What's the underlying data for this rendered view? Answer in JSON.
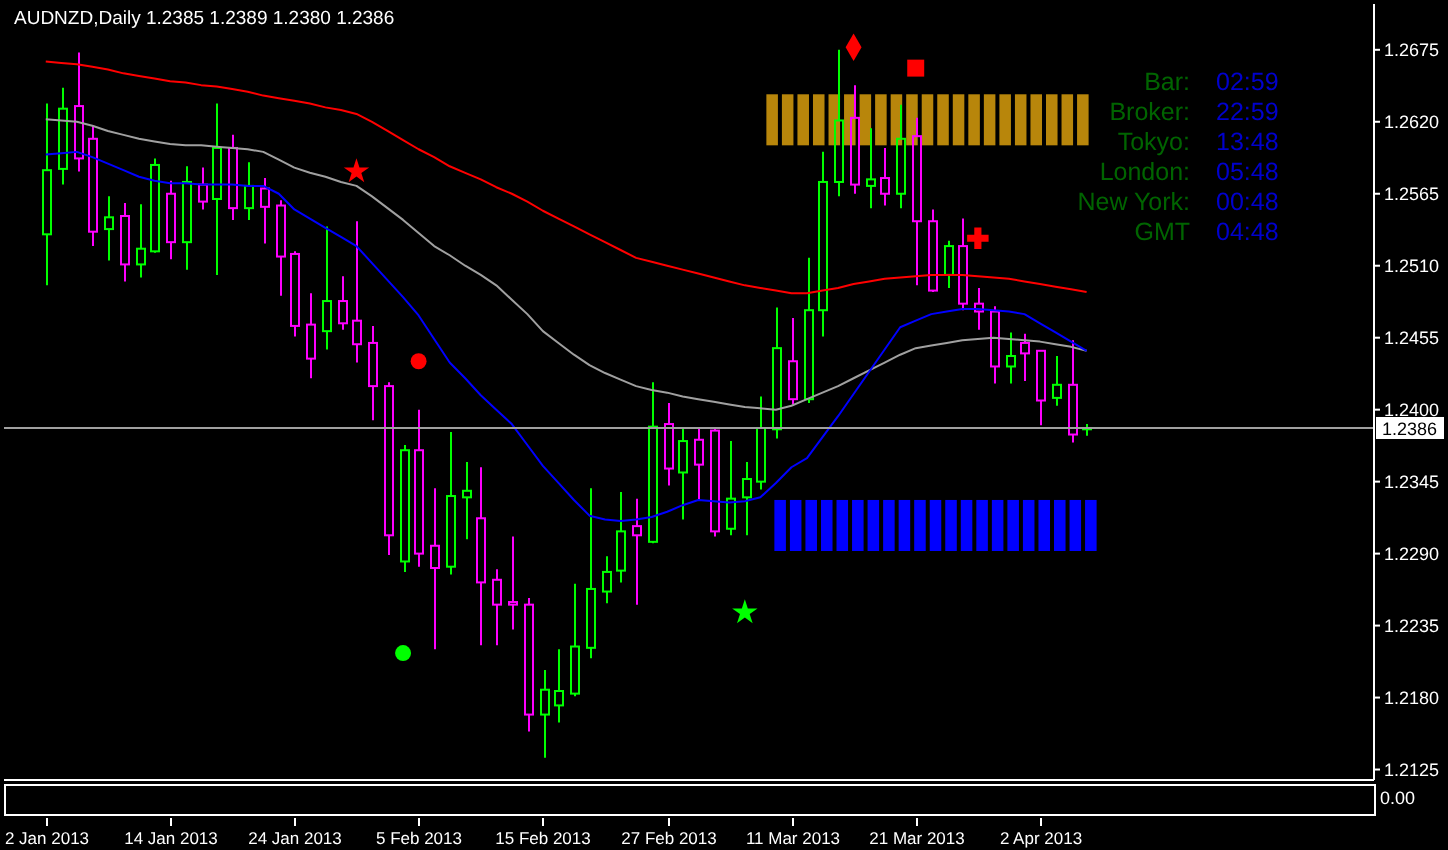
{
  "chart_data": [
    {
      "type": "candlestick",
      "title": "AUDNZD,Daily 1.2385 1.2389 1.2380 1.2386",
      "categories": [
        "2 Jan 2013",
        null,
        null,
        null,
        null,
        null,
        null,
        null,
        "14 Jan 2013",
        null,
        null,
        null,
        null,
        null,
        null,
        null,
        "24 Jan 2013",
        null,
        null,
        null,
        null,
        null,
        null,
        null,
        "5 Feb 2013",
        null,
        null,
        null,
        null,
        null,
        null,
        null,
        "15 Feb 2013",
        null,
        null,
        null,
        null,
        null,
        null,
        null,
        "27 Feb 2013",
        null,
        null,
        null,
        null,
        null,
        null,
        null,
        "11 Mar 2013",
        null,
        null,
        null,
        null,
        null,
        null,
        null,
        "21 Mar 2013",
        null,
        null,
        null,
        null,
        null,
        null,
        null,
        "2 Apr 2013",
        null,
        null,
        null,
        null,
        null,
        null,
        null,
        null,
        null,
        null,
        null,
        null,
        null,
        null,
        null,
        null,
        null,
        null,
        null,
        null,
        null
      ],
      "ohlc": [
        [
          1.2534,
          1.2634,
          1.2495,
          1.2583
        ],
        [
          1.2584,
          1.2646,
          1.2572,
          1.263
        ],
        [
          1.2632,
          1.2673,
          1.2582,
          1.2592
        ],
        [
          1.2607,
          1.2617,
          1.2525,
          1.2536
        ],
        [
          1.2538,
          1.2563,
          1.2514,
          1.2547
        ],
        [
          1.2548,
          1.2558,
          1.2498,
          1.2511
        ],
        [
          1.2511,
          1.2557,
          1.2501,
          1.2523
        ],
        [
          1.2521,
          1.2592,
          1.252,
          1.2587
        ],
        [
          1.2565,
          1.2575,
          1.2515,
          1.2528
        ],
        [
          1.2528,
          1.2586,
          1.2507,
          1.2574
        ],
        [
          1.2572,
          1.2585,
          1.2553,
          1.2559
        ],
        [
          1.2561,
          1.2634,
          1.2503,
          1.26
        ],
        [
          1.26,
          1.261,
          1.2545,
          1.2554
        ],
        [
          1.2554,
          1.2589,
          1.2545,
          1.2571
        ],
        [
          1.2569,
          1.2577,
          1.2527,
          1.2555
        ],
        [
          1.2556,
          1.256,
          1.2487,
          1.2517
        ],
        [
          1.2519,
          1.2521,
          1.2456,
          1.2464
        ],
        [
          1.2465,
          1.2489,
          1.2424,
          1.2439
        ],
        [
          1.246,
          1.254,
          1.2446,
          1.2483
        ],
        [
          1.2483,
          1.2502,
          1.2461,
          1.2466
        ],
        [
          1.2468,
          1.2544,
          1.2436,
          1.245
        ],
        [
          1.2451,
          1.2464,
          1.2392,
          1.2418
        ],
        [
          1.2418,
          1.2421,
          1.2289,
          1.2304
        ],
        [
          1.2284,
          1.2373,
          1.2276,
          1.2369
        ],
        [
          1.2369,
          1.24,
          1.228,
          1.229
        ],
        [
          1.2296,
          1.234,
          1.2217,
          1.2279
        ],
        [
          1.228,
          1.2383,
          1.2274,
          1.2334
        ],
        [
          1.2333,
          1.236,
          1.2301,
          1.2338
        ],
        [
          1.2317,
          1.2356,
          1.222,
          1.2268
        ],
        [
          1.227,
          1.2278,
          1.222,
          1.2251
        ],
        [
          1.2253,
          1.2303,
          1.2232,
          1.2251
        ],
        [
          1.2251,
          1.2256,
          1.2154,
          1.2167
        ],
        [
          1.2167,
          1.2201,
          1.2134,
          1.2186
        ],
        [
          1.2174,
          1.2217,
          1.2161,
          1.2185
        ],
        [
          1.2183,
          1.2267,
          1.2181,
          1.2219
        ],
        [
          1.2218,
          1.234,
          1.221,
          1.2263
        ],
        [
          1.2261,
          1.2288,
          1.2252,
          1.2276
        ],
        [
          1.2277,
          1.2337,
          1.2268,
          1.2307
        ],
        [
          1.2311,
          1.2332,
          1.2251,
          1.2304
        ],
        [
          1.2299,
          1.2421,
          1.2298,
          1.2387
        ],
        [
          1.2389,
          1.2405,
          1.2342,
          1.2355
        ],
        [
          1.2352,
          1.2386,
          1.2316,
          1.2376
        ],
        [
          1.2377,
          1.2386,
          1.2331,
          1.2358
        ],
        [
          1.2384,
          1.2386,
          1.2303,
          1.2307
        ],
        [
          1.2309,
          1.2376,
          1.2304,
          1.2332
        ],
        [
          1.2333,
          1.236,
          1.2304,
          1.2347
        ],
        [
          1.2345,
          1.241,
          1.2339,
          1.2386
        ],
        [
          1.2385,
          1.2478,
          1.2378,
          1.2447
        ],
        [
          1.2437,
          1.247,
          1.2404,
          1.2408
        ],
        [
          1.2408,
          1.2516,
          1.2405,
          1.2476
        ],
        [
          1.2476,
          1.2597,
          1.2456,
          1.2574
        ],
        [
          1.2574,
          1.2675,
          1.2563,
          1.2621
        ],
        [
          1.2623,
          1.2648,
          1.2565,
          1.2572
        ],
        [
          1.2571,
          1.2615,
          1.2554,
          1.2576
        ],
        [
          1.2577,
          1.26,
          1.2556,
          1.2565
        ],
        [
          1.2565,
          1.2633,
          1.2554,
          1.2607
        ],
        [
          1.2609,
          1.2623,
          1.2495,
          1.2544
        ],
        [
          1.2544,
          1.2553,
          1.249,
          1.2491
        ],
        [
          1.2503,
          1.2529,
          1.2493,
          1.2525
        ],
        [
          1.2525,
          1.2546,
          1.2476,
          1.2481
        ],
        [
          1.2481,
          1.2493,
          1.2461,
          1.2475
        ],
        [
          1.2475,
          1.2479,
          1.242,
          1.2433
        ],
        [
          1.2433,
          1.2459,
          1.242,
          1.2441
        ],
        [
          1.2451,
          1.2458,
          1.2422,
          1.2443
        ],
        [
          1.2445,
          1.2445,
          1.2388,
          1.2407
        ],
        [
          1.2409,
          1.2441,
          1.2403,
          1.2419
        ],
        [
          1.2419,
          1.2453,
          1.2375,
          1.2381
        ],
        [
          1.2385,
          1.2389,
          1.238,
          1.2386
        ],
        null,
        null,
        null,
        null,
        null,
        null,
        null,
        null,
        null,
        null,
        null,
        null,
        null,
        null,
        null,
        null,
        null,
        null
      ],
      "colors": [
        "#00ff00",
        "#00ff00",
        "#ff00ff",
        "#ff00ff",
        "#00ff00",
        "#ff00ff",
        "#00ff00",
        "#00ff00",
        "#ff00ff",
        "#00ff00",
        "#ff00ff",
        "#00ff00",
        "#ff00ff",
        "#00ff00",
        "#ff00ff",
        "#ff00ff",
        "#ff00ff",
        "#ff00ff",
        "#00ff00",
        "#ff00ff",
        "#ff00ff",
        "#ff00ff",
        "#ff00ff",
        "#00ff00",
        "#ff00ff",
        "#ff00ff",
        "#00ff00",
        "#00ff00",
        "#ff00ff",
        "#ff00ff",
        "#ff00ff",
        "#ff00ff",
        "#00ff00",
        "#00ff00",
        "#00ff00",
        "#00ff00",
        "#00ff00",
        "#00ff00",
        "#ff00ff",
        "#00ff00",
        "#ff00ff",
        "#00ff00",
        "#ff00ff",
        "#ff00ff",
        "#00ff00",
        "#00ff00",
        "#00ff00",
        "#00ff00",
        "#ff00ff",
        "#00ff00",
        "#00ff00",
        "#00ff00",
        "#ff00ff",
        "#00ff00",
        "#ff00ff",
        "#00ff00",
        "#ff00ff",
        "#ff00ff",
        "#00ff00",
        "#ff00ff",
        "#ff00ff",
        "#ff00ff",
        "#00ff00",
        "#ff00ff",
        "#ff00ff",
        "#00ff00",
        "#ff00ff",
        "#00ff00",
        null,
        null,
        null,
        null,
        null,
        null,
        null,
        null,
        null,
        null,
        null,
        null,
        null,
        null,
        null,
        null,
        null,
        null
      ],
      "series": [
        {
          "type": "bar",
          "color": "#b8860b",
          "base": [
            null,
            null,
            null,
            null,
            null,
            null,
            null,
            null,
            null,
            null,
            null,
            null,
            null,
            null,
            null,
            null,
            null,
            null,
            null,
            null,
            null,
            null,
            null,
            null,
            null,
            null,
            null,
            null,
            null,
            null,
            null,
            null,
            null,
            null,
            null,
            null,
            null,
            null,
            null,
            null,
            null,
            null,
            null,
            null,
            null,
            null,
            null,
            1.2602,
            1.2602,
            1.2602,
            1.2602,
            1.2602,
            1.2602,
            1.2602,
            1.2602,
            1.2602,
            1.2602,
            1.2602,
            1.2602,
            1.2602,
            1.2602,
            1.2602,
            1.2602,
            1.2602,
            1.2602,
            1.2602,
            1.2602,
            1.2602,
            null,
            null,
            null,
            null,
            null,
            null,
            null,
            null,
            null,
            null,
            null,
            null,
            null,
            null,
            null,
            null,
            null,
            null
          ],
          "values": [
            null,
            null,
            null,
            null,
            null,
            null,
            null,
            null,
            null,
            null,
            null,
            null,
            null,
            null,
            null,
            null,
            null,
            null,
            null,
            null,
            null,
            null,
            null,
            null,
            null,
            null,
            null,
            null,
            null,
            null,
            null,
            null,
            null,
            null,
            null,
            null,
            null,
            null,
            null,
            null,
            null,
            null,
            null,
            null,
            null,
            null,
            null,
            0.0039,
            0.0039,
            0.0039,
            0.0039,
            0.0039,
            0.0039,
            0.0039,
            0.0039,
            0.0039,
            0.0039,
            0.0039,
            0.0039,
            0.0039,
            0.0039,
            0.0039,
            0.0039,
            0.0039,
            0.0039,
            0.0039,
            0.0039,
            0.0039,
            null,
            null,
            null,
            null,
            null,
            null,
            null,
            null,
            null,
            null,
            null,
            null,
            null,
            null,
            null,
            null,
            null,
            null
          ]
        },
        {
          "type": "bar",
          "color": "#0000ff",
          "base": [
            null,
            null,
            null,
            null,
            null,
            null,
            null,
            null,
            null,
            null,
            null,
            null,
            null,
            null,
            null,
            null,
            null,
            null,
            null,
            null,
            null,
            null,
            null,
            null,
            null,
            null,
            null,
            null,
            null,
            null,
            null,
            null,
            null,
            null,
            null,
            null,
            null,
            null,
            null,
            null,
            null,
            null,
            null,
            null,
            null,
            null,
            null,
            1.2292,
            1.2292,
            1.2292,
            1.2292,
            1.2292,
            1.2292,
            1.2292,
            1.2292,
            1.2292,
            1.2292,
            1.2292,
            1.2292,
            1.2292,
            1.2292,
            1.2292,
            1.2292,
            1.2292,
            1.2292,
            1.2292,
            1.2292,
            1.2292,
            null,
            null,
            null,
            null,
            null,
            null,
            null,
            null,
            null,
            null,
            null,
            null,
            null,
            null,
            null,
            null,
            null,
            null
          ],
          "values": [
            null,
            null,
            null,
            null,
            null,
            null,
            null,
            null,
            null,
            null,
            null,
            null,
            null,
            null,
            null,
            null,
            null,
            null,
            null,
            null,
            null,
            null,
            null,
            null,
            null,
            null,
            null,
            null,
            null,
            null,
            null,
            null,
            null,
            null,
            null,
            null,
            null,
            null,
            null,
            null,
            null,
            null,
            null,
            null,
            null,
            null,
            null,
            0.0039,
            0.0039,
            0.0039,
            0.0039,
            0.0039,
            0.0039,
            0.0039,
            0.0039,
            0.0039,
            0.0039,
            0.0039,
            0.0039,
            0.0039,
            0.0039,
            0.0039,
            0.0039,
            0.0039,
            0.0039,
            0.0039,
            0.0039,
            0.0039,
            null,
            null,
            null,
            null,
            null,
            null,
            null,
            null,
            null,
            null,
            null,
            null,
            null,
            null,
            null,
            null,
            null,
            null
          ]
        },
        {
          "type": "line",
          "color": "#ff0000",
          "values": [
            1.2666,
            1.2665,
            1.2664,
            1.2662,
            1.266,
            1.2657,
            1.2655,
            1.2653,
            1.2651,
            1.265,
            1.2648,
            1.2647,
            1.2645,
            1.2643,
            1.264,
            1.2638,
            1.2636,
            1.2634,
            1.2631,
            1.2629,
            1.2626,
            1.262,
            1.2613,
            1.2606,
            1.2599,
            1.2593,
            1.2586,
            1.2581,
            1.2576,
            1.257,
            1.2565,
            1.2559,
            1.2552,
            1.2546,
            1.254,
            1.2534,
            1.2528,
            1.2522,
            1.2516,
            1.2513,
            1.251,
            1.2507,
            1.2504,
            1.2501,
            1.2498,
            1.2495,
            1.2493,
            1.2491,
            1.2489,
            1.2489,
            1.2491,
            1.2493,
            1.2496,
            1.2498,
            1.25,
            1.2501,
            1.2502,
            1.2503,
            1.2503,
            1.2503,
            1.2502,
            1.2501,
            1.25,
            1.2498,
            1.2496,
            1.2494,
            1.2492,
            1.249,
            null,
            null,
            null,
            null,
            null,
            null,
            null,
            null,
            null,
            null,
            null,
            null,
            null,
            null,
            null,
            null,
            null,
            null
          ]
        },
        {
          "type": "line",
          "color": "#a0a0a0",
          "values": [
            1.2622,
            1.2621,
            1.262,
            1.2617,
            1.2613,
            1.261,
            1.2607,
            1.2605,
            1.2603,
            1.2602,
            1.2602,
            1.2601,
            1.26,
            1.2599,
            1.2597,
            1.2591,
            1.2585,
            1.2581,
            1.2578,
            1.2574,
            1.2571,
            1.2563,
            1.2554,
            1.2545,
            1.2535,
            1.2525,
            1.2518,
            1.251,
            1.2503,
            1.2495,
            1.2484,
            1.2473,
            1.246,
            1.2451,
            1.2442,
            1.2434,
            1.2428,
            1.2423,
            1.2418,
            1.2415,
            1.2413,
            1.241,
            1.2408,
            1.2406,
            1.2404,
            1.2402,
            1.2401,
            1.24,
            1.2403,
            1.2408,
            1.2413,
            1.2418,
            1.2424,
            1.243,
            1.2436,
            1.2442,
            1.2447,
            1.2449,
            1.2451,
            1.2453,
            1.2454,
            1.2455,
            1.2454,
            1.2453,
            1.2452,
            1.245,
            1.2448,
            1.2445,
            null,
            null,
            null,
            null,
            null,
            null,
            null,
            null,
            null,
            null,
            null,
            null,
            null,
            null,
            null,
            null,
            null,
            null
          ]
        },
        {
          "type": "line",
          "color": "#0000ff",
          "values": [
            1.2595,
            1.2596,
            1.2597,
            1.2593,
            1.2588,
            1.2583,
            1.2578,
            1.2575,
            1.2573,
            1.2573,
            1.2572,
            1.2572,
            1.2572,
            1.2571,
            1.2571,
            1.2565,
            1.2553,
            1.2546,
            1.2539,
            1.2532,
            1.2525,
            1.2512,
            1.2499,
            1.2486,
            1.2472,
            1.2454,
            1.2436,
            1.2424,
            1.2411,
            1.24,
            1.2389,
            1.2373,
            1.2357,
            1.2344,
            1.2331,
            1.2319,
            1.2316,
            1.2315,
            1.2316,
            1.2318,
            1.2322,
            1.2327,
            1.2331,
            1.233,
            1.2329,
            1.233,
            1.2333,
            1.2344,
            1.2356,
            1.2363,
            1.2379,
            1.2395,
            1.2412,
            1.2429,
            1.2446,
            1.2463,
            1.2468,
            1.2473,
            1.2475,
            1.2477,
            1.2477,
            1.2476,
            1.2475,
            1.2473,
            1.2466,
            1.2459,
            1.2452,
            1.2445,
            null,
            null,
            null,
            null,
            null,
            null,
            null,
            null,
            null,
            null,
            null,
            null,
            null,
            null,
            null,
            null,
            null,
            null
          ]
        },
        {
          "type": "scatter",
          "color": "#ff0000",
          "marker": "star",
          "values": [
            null,
            null,
            null,
            null,
            null,
            null,
            null,
            null,
            null,
            null,
            null,
            null,
            null,
            null,
            null,
            null,
            null,
            null,
            null,
            null,
            1.2582,
            null,
            null,
            null,
            null,
            null,
            null,
            null,
            null,
            null,
            null,
            null,
            null,
            null,
            null,
            null,
            null,
            null,
            null,
            null,
            null,
            null,
            null,
            null,
            null,
            null,
            null,
            null,
            null,
            null,
            null,
            null,
            null,
            null,
            null,
            null,
            null,
            null,
            null,
            null,
            null,
            null,
            null,
            null,
            null,
            null,
            null,
            null,
            null,
            null,
            null,
            null,
            null,
            null,
            null,
            null,
            null,
            null,
            null,
            null,
            null,
            null,
            null,
            null,
            null,
            null
          ]
        },
        {
          "type": "scatter",
          "color": "#ff0000",
          "marker": "circle",
          "values": [
            null,
            null,
            null,
            null,
            null,
            null,
            null,
            null,
            null,
            null,
            null,
            null,
            null,
            null,
            null,
            null,
            null,
            null,
            null,
            null,
            null,
            null,
            null,
            null,
            1.2437,
            null,
            null,
            null,
            null,
            null,
            null,
            null,
            null,
            null,
            null,
            null,
            null,
            null,
            null,
            null,
            null,
            null,
            null,
            null,
            null,
            null,
            null,
            null,
            null,
            null,
            null,
            null,
            null,
            null,
            null,
            null,
            null,
            null,
            null,
            null,
            null,
            null,
            null,
            null,
            null,
            null,
            null,
            null,
            null,
            null,
            null,
            null,
            null,
            null,
            null,
            null,
            null,
            null,
            null,
            null,
            null,
            null,
            null,
            null,
            null,
            null
          ]
        },
        {
          "type": "scatter",
          "color": "#00ff00",
          "marker": "circle",
          "values": [
            null,
            null,
            null,
            null,
            null,
            null,
            null,
            null,
            null,
            null,
            null,
            null,
            null,
            null,
            null,
            null,
            null,
            null,
            null,
            null,
            null,
            null,
            null,
            1.2214,
            null,
            null,
            null,
            null,
            null,
            null,
            null,
            null,
            null,
            null,
            null,
            null,
            null,
            null,
            null,
            null,
            null,
            null,
            null,
            null,
            null,
            null,
            null,
            null,
            null,
            null,
            null,
            null,
            null,
            null,
            null,
            null,
            null,
            null,
            null,
            null,
            null,
            null,
            null,
            null,
            null,
            null,
            null,
            null,
            null,
            null,
            null,
            null,
            null,
            null,
            null,
            null,
            null,
            null,
            null,
            null,
            null,
            null,
            null,
            null,
            null,
            null
          ]
        },
        {
          "type": "scatter",
          "color": "#00ff00",
          "marker": "star",
          "values": [
            null,
            null,
            null,
            null,
            null,
            null,
            null,
            null,
            null,
            null,
            null,
            null,
            null,
            null,
            null,
            null,
            null,
            null,
            null,
            null,
            null,
            null,
            null,
            null,
            null,
            null,
            null,
            null,
            null,
            null,
            null,
            null,
            null,
            null,
            null,
            null,
            null,
            null,
            null,
            null,
            null,
            null,
            null,
            null,
            null,
            1.2245,
            null,
            null,
            null,
            null,
            null,
            null,
            null,
            null,
            null,
            null,
            null,
            null,
            null,
            null,
            null,
            null,
            null,
            null,
            null,
            null,
            null,
            null,
            null,
            null,
            null,
            null,
            null,
            null,
            null,
            null,
            null,
            null,
            null,
            null,
            null,
            null,
            null,
            null,
            null,
            null
          ]
        },
        {
          "type": "scatter",
          "color": "#ff0000",
          "marker": "diamond",
          "values": [
            null,
            null,
            null,
            null,
            null,
            null,
            null,
            null,
            null,
            null,
            null,
            null,
            null,
            null,
            null,
            null,
            null,
            null,
            null,
            null,
            null,
            null,
            null,
            null,
            null,
            null,
            null,
            null,
            null,
            null,
            null,
            null,
            null,
            null,
            null,
            null,
            null,
            null,
            null,
            null,
            null,
            null,
            null,
            null,
            null,
            null,
            null,
            null,
            null,
            null,
            null,
            null,
            1.2677,
            null,
            null,
            null,
            null,
            null,
            null,
            null,
            null,
            null,
            null,
            null,
            null,
            null,
            null,
            null,
            null,
            null,
            null,
            null,
            null,
            null,
            null,
            null,
            null,
            null,
            null,
            null,
            null,
            null,
            null,
            null,
            null,
            null
          ]
        },
        {
          "type": "scatter",
          "color": "#ff0000",
          "marker": "square",
          "values": [
            null,
            null,
            null,
            null,
            null,
            null,
            null,
            null,
            null,
            null,
            null,
            null,
            null,
            null,
            null,
            null,
            null,
            null,
            null,
            null,
            null,
            null,
            null,
            null,
            null,
            null,
            null,
            null,
            null,
            null,
            null,
            null,
            null,
            null,
            null,
            null,
            null,
            null,
            null,
            null,
            null,
            null,
            null,
            null,
            null,
            null,
            null,
            null,
            null,
            null,
            null,
            null,
            null,
            null,
            null,
            null,
            1.2661,
            null,
            null,
            null,
            null,
            null,
            null,
            null,
            null,
            null,
            null,
            null,
            null,
            null,
            null,
            null,
            null,
            null,
            null,
            null,
            null,
            null,
            null,
            null,
            null,
            null,
            null,
            null,
            null,
            null
          ]
        },
        {
          "type": "scatter",
          "color": "#ff0000",
          "marker": "cross",
          "values": [
            null,
            null,
            null,
            null,
            null,
            null,
            null,
            null,
            null,
            null,
            null,
            null,
            null,
            null,
            null,
            null,
            null,
            null,
            null,
            null,
            null,
            null,
            null,
            null,
            null,
            null,
            null,
            null,
            null,
            null,
            null,
            null,
            null,
            null,
            null,
            null,
            null,
            null,
            null,
            null,
            null,
            null,
            null,
            null,
            null,
            null,
            null,
            null,
            null,
            null,
            null,
            null,
            null,
            null,
            null,
            null,
            null,
            null,
            null,
            null,
            1.2531,
            null,
            null,
            null,
            null,
            null,
            null,
            null,
            null,
            null,
            null,
            null,
            null,
            null,
            null,
            null,
            null,
            null,
            null,
            null,
            null,
            null,
            null,
            null,
            null,
            null
          ]
        }
      ],
      "ylim": [
        1.2117,
        1.271
      ],
      "yticks": [
        1.2675,
        {
          "value": 1.262,
          "label": "1.2620"
        },
        1.2565,
        {
          "value": 1.251,
          "label": "1.2510"
        },
        1.2455,
        {
          "value": 1.24,
          "label": "1.2400"
        },
        1.2345,
        {
          "value": 1.229,
          "label": "1.2290"
        },
        1.2235,
        {
          "value": 1.218,
          "label": "1.2180"
        },
        1.2125
      ],
      "ref_lines": [
        {
          "axis": "y",
          "value": 1.2386,
          "label": "1.2386",
          "color": "#a0a0a0"
        }
      ],
      "annotations": [
        "Bar: 02:59",
        "Broker: 22:59",
        "Tokyo: 13:48",
        "London: 05:48",
        "New York: 00:48",
        "GMT 04:48"
      ]
    },
    {
      "type": "other",
      "annotations": [
        "0.00"
      ]
    }
  ]
}
